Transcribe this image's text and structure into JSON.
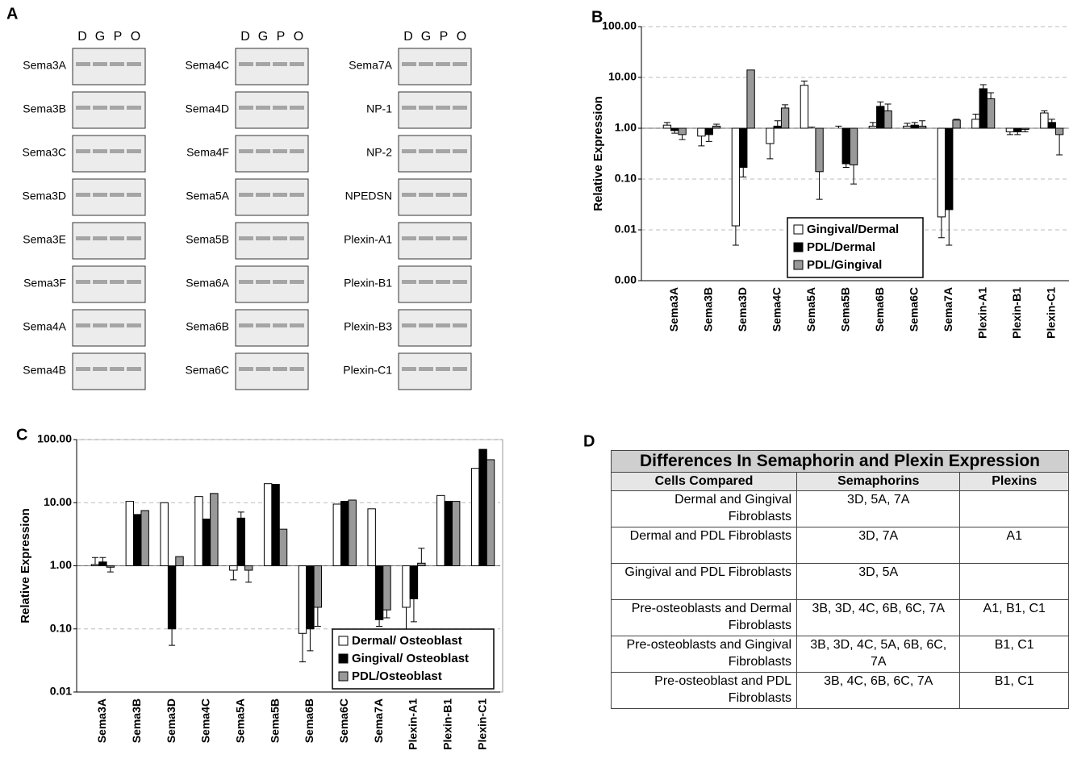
{
  "panel_labels": {
    "a": "A",
    "b": "B",
    "c": "C",
    "d": "D"
  },
  "gel": {
    "lanes": [
      "D",
      "G",
      "P",
      "O"
    ],
    "genes": [
      [
        "Sema3A",
        "Sema3B",
        "Sema3C",
        "Sema3D",
        "Sema3E",
        "Sema3F",
        "Sema4A",
        "Sema4B"
      ],
      [
        "Sema4C",
        "Sema4D",
        "Sema4F",
        "Sema5A",
        "Sema5B",
        "Sema6A",
        "Sema6B",
        "Sema6C"
      ],
      [
        "Sema7A",
        "NP-1",
        "NP-2",
        "NPEDSN",
        "Plexin-A1",
        "Plexin-B1",
        "Plexin-B3",
        "Plexin-C1"
      ]
    ]
  },
  "chart_data": [
    {
      "type": "bar",
      "y_label": "Relative Expression",
      "log_scale": true,
      "grid": true,
      "legend": "bottom-center",
      "categories": [
        "Sema3A",
        "Sema3B",
        "Sema3D",
        "Sema4C",
        "Sema5A",
        "Sema5B",
        "Sema6B",
        "Sema6C",
        "Sema7A",
        "Plexin-A1",
        "Plexin-B1",
        "Plexin-C1"
      ],
      "series": [
        {
          "name": "Gingival/Dermal",
          "color": "#ffffff",
          "values": [
            1.15,
            0.7,
            0.012,
            0.5,
            7,
            1.0,
            1.1,
            1.1,
            0.018,
            1.5,
            0.85,
            2.0
          ],
          "errors": [
            0.15,
            0.25,
            0.007,
            0.25,
            1.5,
            0.1,
            0.2,
            0.15,
            0.011,
            0.4,
            0.1,
            0.2
          ]
        },
        {
          "name": "PDL/Dermal",
          "color": "#000000",
          "values": [
            0.9,
            0.75,
            0.17,
            1.1,
            1.0,
            0.2,
            2.7,
            1.15,
            0.025,
            6,
            0.85,
            1.3
          ],
          "errors": [
            0.1,
            0.2,
            0.06,
            0.3,
            0.05,
            0.03,
            0.6,
            0.15,
            0.02,
            1.2,
            0.1,
            0.2
          ]
        },
        {
          "name": "PDL/Gingival",
          "color": "#999999",
          "values": [
            0.75,
            1.1,
            14,
            2.5,
            0.14,
            0.19,
            2.2,
            1.1,
            1.45,
            3.8,
            0.95,
            0.75
          ],
          "errors": [
            0.15,
            0.1,
            null,
            0.4,
            0.1,
            0.11,
            0.8,
            0.3,
            0.05,
            1.2,
            0.1,
            0.45
          ]
        }
      ],
      "ylim": [
        0.001,
        100
      ],
      "yticks": [
        {
          "value": 0.001,
          "label": "0.00"
        },
        {
          "value": 0.01,
          "label": "0.01"
        },
        {
          "value": 0.1,
          "label": "0.10"
        },
        {
          "value": 1,
          "label": "1.00"
        },
        {
          "value": 10,
          "label": "10.00"
        },
        {
          "value": 100,
          "label": "100.00"
        }
      ]
    },
    {
      "type": "bar",
      "y_label": "Relative Expression",
      "log_scale": true,
      "grid": true,
      "legend": "bottom-right",
      "categories": [
        "Sema3A",
        "Sema3B",
        "Sema3D",
        "Sema4C",
        "Sema5A",
        "Sema5B",
        "Sema6B",
        "Sema6C",
        "Sema7A",
        "Plexin-A1",
        "Plexin-B1",
        "Plexin-C1"
      ],
      "series": [
        {
          "name": "Dermal/ Osteoblast",
          "color": "#ffffff",
          "values": [
            1.05,
            10.5,
            10,
            12.5,
            0.85,
            20,
            0.085,
            9.5,
            8,
            0.22,
            13,
            35
          ],
          "errors": [
            0.3,
            null,
            null,
            null,
            0.25,
            null,
            0.055,
            null,
            null,
            0.13,
            null,
            null
          ]
        },
        {
          "name": "Gingival/ Osteoblast",
          "color": "#000000",
          "values": [
            1.15,
            6.5,
            0.1,
            5.5,
            5.7,
            19.5,
            0.1,
            10.5,
            0.14,
            0.3,
            10.5,
            70
          ],
          "errors": [
            0.2,
            null,
            0.045,
            null,
            1.4,
            null,
            0.055,
            null,
            0.03,
            0.17,
            null,
            null
          ]
        },
        {
          "name": "PDL/Osteoblast",
          "color": "#999999",
          "values": [
            0.95,
            7.5,
            1.4,
            14,
            0.85,
            3.8,
            0.22,
            11,
            0.2,
            1.1,
            10.5,
            48
          ],
          "errors": [
            0.15,
            null,
            null,
            null,
            0.3,
            null,
            0.11,
            null,
            0.05,
            0.8,
            null,
            null
          ]
        }
      ],
      "ylim": [
        0.01,
        100
      ],
      "yticks": [
        {
          "value": 0.01,
          "label": "0.01"
        },
        {
          "value": 0.1,
          "label": "0.10"
        },
        {
          "value": 1,
          "label": "1.00"
        },
        {
          "value": 10,
          "label": "10.00"
        },
        {
          "value": 100,
          "label": "100.00"
        }
      ]
    }
  ],
  "table": {
    "title": "Differences In Semaphorin and Plexin Expression",
    "header": [
      "Cells Compared",
      "Semaphorins",
      "Plexins"
    ],
    "rows": [
      [
        "Dermal and Gingival Fibroblasts",
        "3D, 5A, 7A",
        null
      ],
      [
        "Dermal and PDL Fibroblasts",
        "3D, 7A",
        "A1"
      ],
      [
        "Gingival and PDL Fibroblasts",
        "3D, 5A",
        null
      ],
      [
        "Pre-osteoblasts and Dermal Fibroblasts",
        "3B, 3D, 4C, 6B, 6C, 7A",
        "A1, B1, C1"
      ],
      [
        "Pre-osteoblasts and Gingival Fibroblasts",
        "3B, 3D, 4C, 5A, 6B, 6C, 7A",
        "B1, C1"
      ],
      [
        "Pre-osteoblast and PDL Fibroblasts",
        "3B, 4C, 6B, 6C, 7A",
        "B1, C1"
      ]
    ]
  }
}
